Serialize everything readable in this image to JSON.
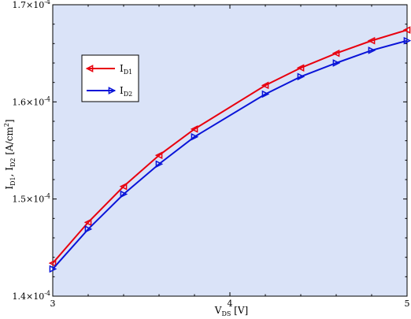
{
  "chart_data": {
    "type": "line",
    "title": "",
    "xlabel": {
      "main": "V",
      "sub": "DS",
      "unit": " [V]"
    },
    "ylabel": {
      "p1": "I",
      "s1": "D1",
      "sep": ", I",
      "s2": "D2",
      "unit": " [A/cm",
      "sup": "2",
      "close": "]"
    },
    "xlim": [
      3,
      5
    ],
    "ylim": [
      0.00014,
      0.00017
    ],
    "x_ticks": [
      {
        "value": 3,
        "label": "3"
      },
      {
        "value": 4,
        "label": "4"
      },
      {
        "value": 5,
        "label": "5"
      }
    ],
    "y_ticks": [
      {
        "value": 0.00014,
        "mant": "1.4×10",
        "exp": "-4"
      },
      {
        "value": 0.00015,
        "mant": "1.5×10",
        "exp": "-4"
      },
      {
        "value": 0.00016,
        "mant": "1.6×10",
        "exp": "-4"
      },
      {
        "value": 0.00017,
        "mant": "1.7×10",
        "exp": "-4"
      }
    ],
    "grid": false,
    "legend_position": "top-left",
    "background_color": "#dae3f8",
    "x": [
      3.0,
      3.2,
      3.4,
      3.6,
      3.8,
      4.2,
      4.4,
      4.6,
      4.8,
      5.0
    ],
    "series": [
      {
        "name_main": "I",
        "name_sub": "D1",
        "color": "#e8000e",
        "marker": "triangle-left",
        "values": [
          0.0001434,
          0.0001476,
          0.0001513,
          0.0001545,
          0.0001572,
          0.0001617,
          0.0001635,
          0.000165,
          0.0001663,
          0.0001674
        ]
      },
      {
        "name_main": "I",
        "name_sub": "D2",
        "color": "#0a14d8",
        "marker": "triangle-right",
        "values": [
          0.0001428,
          0.0001469,
          0.0001505,
          0.0001536,
          0.0001564,
          0.0001608,
          0.0001626,
          0.000164,
          0.0001653,
          0.0001663
        ]
      }
    ]
  }
}
